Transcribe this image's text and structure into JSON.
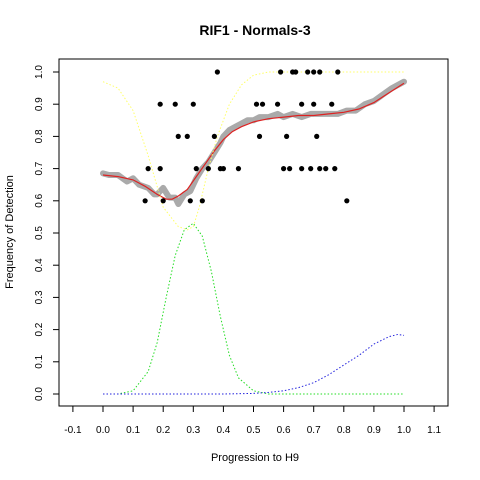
{
  "chart_data": {
    "type": "scatter",
    "title": "RIF1 - Normals-3",
    "xlabel": "Progression to H9",
    "ylabel": "Frequency of Detection",
    "xlim": [
      -0.12,
      1.14
    ],
    "ylim": [
      -0.04,
      1.04
    ],
    "x_ticks": [
      "-0.1",
      "0.0",
      "0.1",
      "0.2",
      "0.3",
      "0.4",
      "0.5",
      "0.6",
      "0.7",
      "0.8",
      "0.9",
      "1.0",
      "1.1"
    ],
    "y_ticks": [
      "0.0",
      "0.1",
      "0.2",
      "0.3",
      "0.4",
      "0.5",
      "0.6",
      "0.7",
      "0.8",
      "0.9",
      "1.0"
    ],
    "grid": false,
    "colors": {
      "points": "#000000",
      "smooth_band": "#aaaaaa",
      "fit_line": "#dd2222",
      "yellow_curve": "#ffff66",
      "green_curve": "#22dd22",
      "blue_curve": "#2222dd"
    },
    "series": [
      {
        "type": "points",
        "x": [
          0.14,
          0.15,
          0.19,
          0.19,
          0.2,
          0.24,
          0.25,
          0.28,
          0.29,
          0.3,
          0.31,
          0.33,
          0.35,
          0.37,
          0.38,
          0.39,
          0.4,
          0.45,
          0.51,
          0.52,
          0.53,
          0.58,
          0.59,
          0.6,
          0.61,
          0.62,
          0.63,
          0.64,
          0.66,
          0.66,
          0.68,
          0.69,
          0.7,
          0.7,
          0.71,
          0.72,
          0.72,
          0.74,
          0.76,
          0.77,
          0.78,
          0.81
        ],
        "y": [
          0.6,
          0.7,
          0.9,
          0.7,
          0.6,
          0.9,
          0.8,
          0.8,
          0.6,
          0.9,
          0.7,
          0.6,
          0.7,
          0.8,
          1.0,
          0.7,
          0.7,
          0.7,
          0.9,
          0.8,
          0.9,
          0.9,
          1.0,
          0.7,
          0.8,
          0.7,
          1.0,
          1.0,
          0.7,
          0.9,
          1.0,
          0.7,
          1.0,
          0.9,
          0.8,
          1.0,
          0.7,
          0.7,
          0.9,
          0.7,
          1.0,
          0.6
        ]
      },
      {
        "type": "band",
        "x": [
          0.0,
          0.02,
          0.05,
          0.08,
          0.1,
          0.12,
          0.15,
          0.17,
          0.18,
          0.2,
          0.22,
          0.24,
          0.25,
          0.27,
          0.29,
          0.31,
          0.33,
          0.35,
          0.37,
          0.39,
          0.4,
          0.42,
          0.44,
          0.46,
          0.48,
          0.5,
          0.52,
          0.55,
          0.58,
          0.6,
          0.63,
          0.66,
          0.69,
          0.72,
          0.75,
          0.78,
          0.81,
          0.84,
          0.87,
          0.9,
          0.93,
          0.96,
          1.0
        ],
        "y": [
          0.685,
          0.68,
          0.68,
          0.66,
          0.67,
          0.65,
          0.64,
          0.62,
          0.62,
          0.64,
          0.61,
          0.61,
          0.59,
          0.62,
          0.63,
          0.67,
          0.7,
          0.72,
          0.75,
          0.78,
          0.8,
          0.82,
          0.83,
          0.84,
          0.85,
          0.85,
          0.86,
          0.86,
          0.87,
          0.86,
          0.87,
          0.86,
          0.87,
          0.87,
          0.87,
          0.87,
          0.88,
          0.88,
          0.9,
          0.91,
          0.93,
          0.95,
          0.97
        ]
      },
      {
        "type": "line",
        "x": [
          0.0,
          0.05,
          0.1,
          0.14,
          0.18,
          0.21,
          0.23,
          0.25,
          0.28,
          0.31,
          0.34,
          0.37,
          0.4,
          0.43,
          0.46,
          0.5,
          0.55,
          0.6,
          0.65,
          0.7,
          0.75,
          0.8,
          0.85,
          0.9,
          0.95,
          1.0
        ],
        "y": [
          0.68,
          0.675,
          0.665,
          0.645,
          0.62,
          0.605,
          0.605,
          0.615,
          0.635,
          0.675,
          0.715,
          0.755,
          0.79,
          0.815,
          0.83,
          0.845,
          0.855,
          0.86,
          0.865,
          0.865,
          0.87,
          0.875,
          0.885,
          0.905,
          0.935,
          0.965
        ]
      },
      {
        "type": "dotted",
        "color_key": "yellow_curve",
        "x": [
          0.0,
          0.05,
          0.1,
          0.15,
          0.2,
          0.25,
          0.28,
          0.3,
          0.32,
          0.35,
          0.38,
          0.42,
          0.46,
          0.5,
          0.55,
          0.6,
          0.7,
          0.8,
          0.9,
          1.0
        ],
        "y": [
          0.97,
          0.95,
          0.88,
          0.74,
          0.58,
          0.52,
          0.51,
          0.52,
          0.58,
          0.7,
          0.8,
          0.9,
          0.96,
          0.99,
          1.0,
          1.0,
          1.0,
          1.0,
          1.0,
          1.0
        ]
      },
      {
        "type": "dotted",
        "color_key": "green_curve",
        "x": [
          0.0,
          0.05,
          0.1,
          0.15,
          0.18,
          0.21,
          0.24,
          0.27,
          0.3,
          0.33,
          0.36,
          0.39,
          0.42,
          0.45,
          0.5,
          0.55,
          0.6,
          0.7,
          0.8,
          0.9,
          1.0
        ],
        "y": [
          0.0,
          0.0,
          0.01,
          0.07,
          0.16,
          0.3,
          0.43,
          0.51,
          0.53,
          0.49,
          0.38,
          0.24,
          0.12,
          0.05,
          0.01,
          0.0,
          0.0,
          0.0,
          0.0,
          0.0,
          0.0
        ]
      },
      {
        "type": "dotted",
        "color_key": "blue_curve",
        "x": [
          0.0,
          0.1,
          0.2,
          0.3,
          0.4,
          0.5,
          0.55,
          0.6,
          0.65,
          0.7,
          0.75,
          0.8,
          0.85,
          0.9,
          0.95,
          0.98,
          1.0
        ],
        "y": [
          0.0,
          0.0,
          0.0,
          0.0,
          0.0,
          0.002,
          0.005,
          0.01,
          0.02,
          0.035,
          0.06,
          0.09,
          0.12,
          0.155,
          0.178,
          0.185,
          0.182
        ]
      }
    ]
  }
}
